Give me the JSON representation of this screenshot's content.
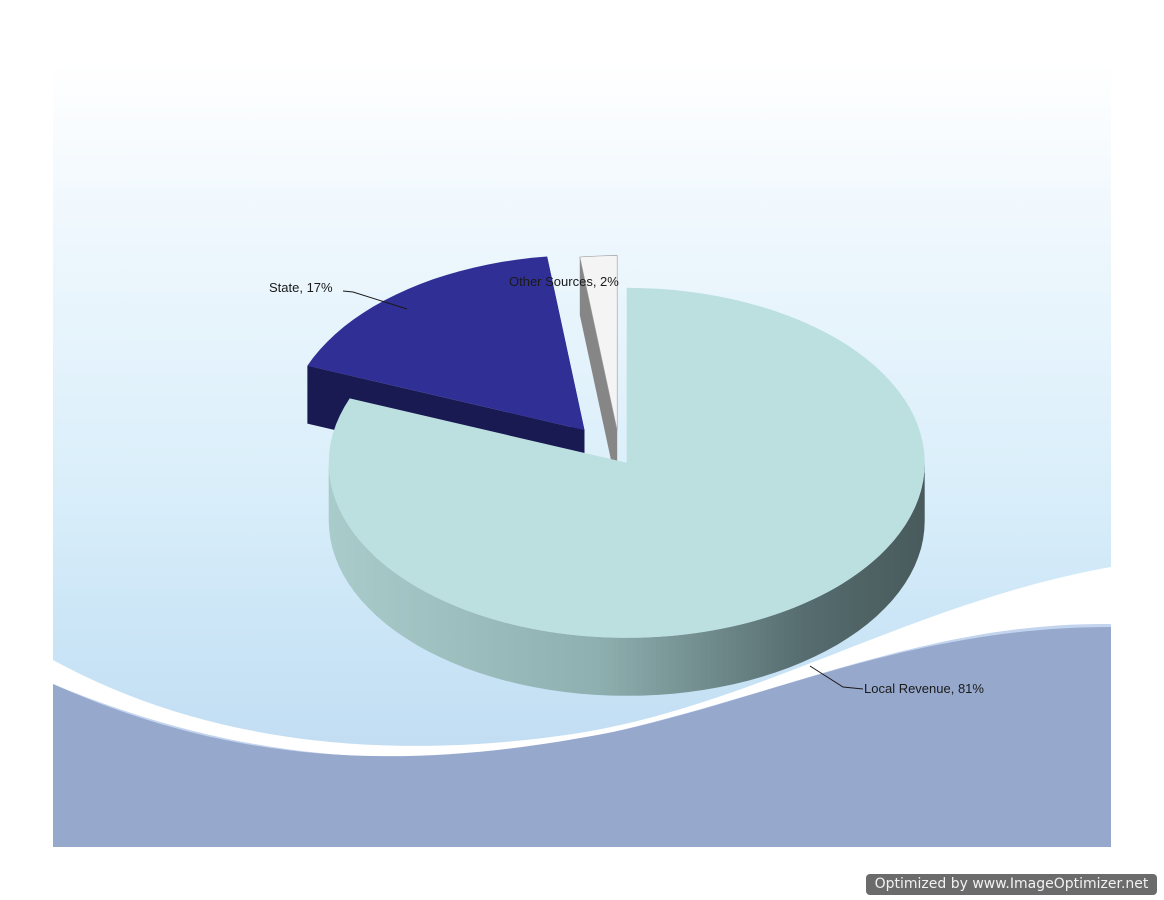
{
  "chart_data": {
    "type": "pie",
    "style": "3d-exploded",
    "slices": [
      {
        "label": "Local Revenue",
        "value": 81,
        "color": "#bcdfe0",
        "label_text": "Local Revenue, 81%"
      },
      {
        "label": "State",
        "value": 17,
        "color": "#2f2f96",
        "label_text": "State, 17%"
      },
      {
        "label": "Other Sources",
        "value": 2,
        "color": "#f4f4f4",
        "label_text": "Other Sources, 2%"
      }
    ],
    "legend": "none"
  },
  "colors": {
    "wave_front": "#97a8cd",
    "wave_white": "#ffffff",
    "background_top": "#ffffff",
    "background_bottom": "#bcd7ef"
  },
  "watermark": {
    "text": "Optimized by www.ImageOptimizer.net"
  }
}
